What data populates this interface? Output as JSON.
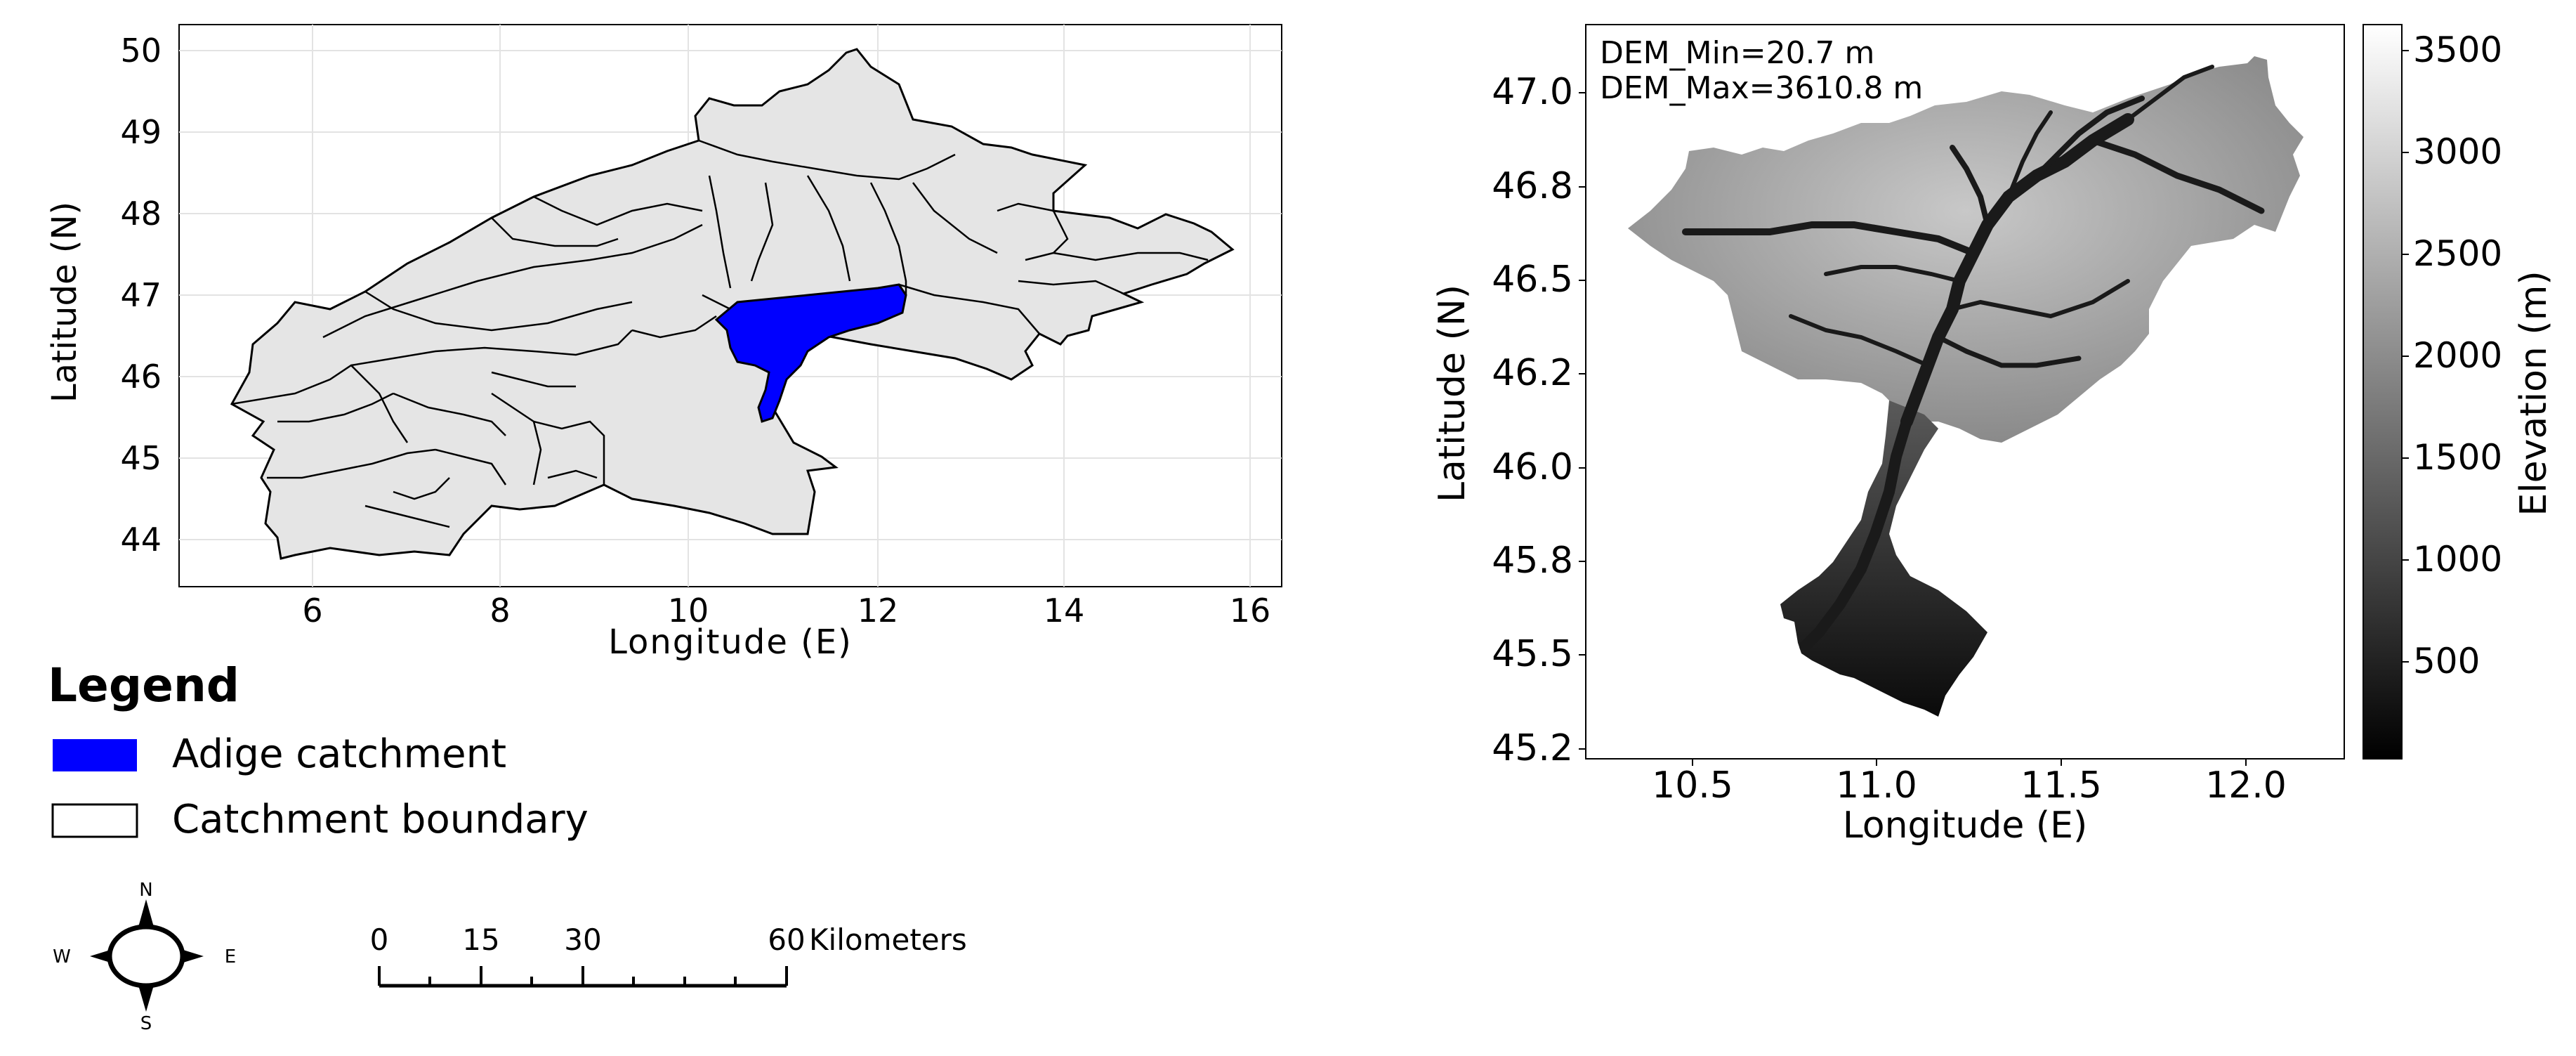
{
  "left_map": {
    "x_ticks": [
      "6",
      "8",
      "10",
      "12",
      "14",
      "16"
    ],
    "y_ticks": [
      "44",
      "45",
      "46",
      "47",
      "48",
      "49",
      "50"
    ],
    "xlabel": "Longitude (E)",
    "ylabel": "Latitude (N)"
  },
  "legend": {
    "title": "Legend",
    "items": [
      {
        "label": "Adige catchment",
        "color": "#0000ff"
      },
      {
        "label": "Catchment boundary",
        "color": "#ffffff"
      }
    ]
  },
  "compass": {
    "n": "N",
    "s": "S",
    "e": "E",
    "w": "W"
  },
  "scale_bar": {
    "ticks": [
      "0",
      "15",
      "30",
      "60"
    ],
    "unit_label": "Kilometers"
  },
  "right_map": {
    "x_ticks": [
      "10.5",
      "11.0",
      "11.5",
      "12.0"
    ],
    "y_ticks": [
      "45.2",
      "45.5",
      "45.8",
      "46.0",
      "46.2",
      "46.5",
      "46.8",
      "47.0"
    ],
    "xlabel": "Longitude (E)",
    "ylabel": "Latitude (N)",
    "dem_min": "DEM_Min=20.7 m",
    "dem_max": "DEM_Max=3610.8 m"
  },
  "colorbar": {
    "ticks": [
      "500",
      "1000",
      "1500",
      "2000",
      "2500",
      "3000",
      "3500"
    ],
    "label": "Elevation (m)"
  },
  "colors": {
    "catchment_fill": "#e5e5e5",
    "adige_fill": "#0000ff",
    "grid": "#dddddd"
  }
}
